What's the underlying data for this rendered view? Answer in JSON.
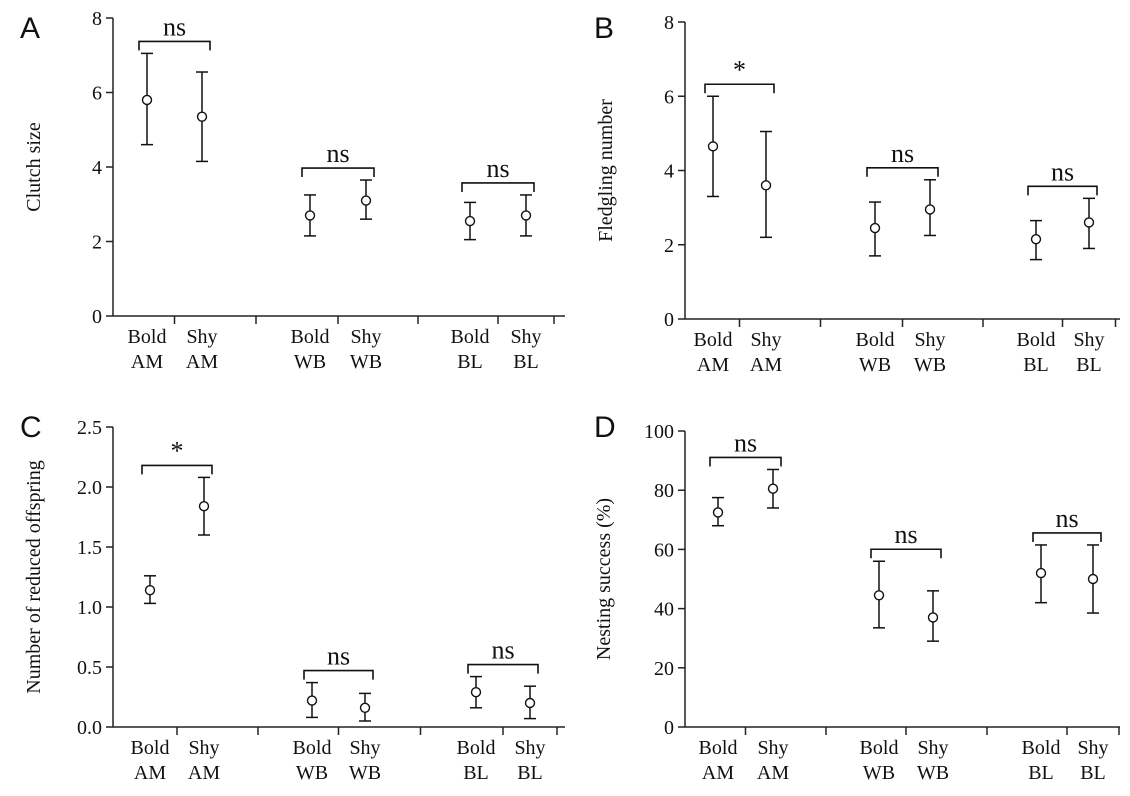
{
  "chart_data": [
    {
      "panel_label": "A",
      "type": "scatter",
      "ylabel": "Clutch size",
      "ylim": [
        0,
        8
      ],
      "yticks": [
        "0",
        "2",
        "4",
        "6",
        "8"
      ],
      "groups": [
        {
          "categories": [
            {
              "line1": "Bold",
              "line2": "AM"
            },
            {
              "line1": "Shy",
              "line2": "AM"
            }
          ],
          "means": [
            5.8,
            5.35
          ],
          "lower": [
            4.6,
            4.15
          ],
          "upper": [
            7.05,
            6.55
          ],
          "significance": "ns"
        },
        {
          "categories": [
            {
              "line1": "Bold",
              "line2": "WB"
            },
            {
              "line1": "Shy",
              "line2": "WB"
            }
          ],
          "means": [
            2.7,
            3.1
          ],
          "lower": [
            2.15,
            2.6
          ],
          "upper": [
            3.25,
            3.65
          ],
          "significance": "ns"
        },
        {
          "categories": [
            {
              "line1": "Bold",
              "line2": "BL"
            },
            {
              "line1": "Shy",
              "line2": "BL"
            }
          ],
          "means": [
            2.55,
            2.7
          ],
          "lower": [
            2.05,
            2.15
          ],
          "upper": [
            3.05,
            3.25
          ],
          "significance": "ns"
        }
      ]
    },
    {
      "panel_label": "B",
      "type": "scatter",
      "ylabel": "Fledgling number",
      "ylim": [
        0,
        8
      ],
      "yticks": [
        "0",
        "2",
        "4",
        "6",
        "8"
      ],
      "groups": [
        {
          "categories": [
            {
              "line1": "Bold",
              "line2": "AM"
            },
            {
              "line1": "Shy",
              "line2": "AM"
            }
          ],
          "means": [
            4.65,
            3.6
          ],
          "lower": [
            3.3,
            2.2
          ],
          "upper": [
            6.0,
            5.05
          ],
          "significance": "*"
        },
        {
          "categories": [
            {
              "line1": "Bold",
              "line2": "WB"
            },
            {
              "line1": "Shy",
              "line2": "WB"
            }
          ],
          "means": [
            2.45,
            2.95
          ],
          "lower": [
            1.7,
            2.25
          ],
          "upper": [
            3.15,
            3.75
          ],
          "significance": "ns"
        },
        {
          "categories": [
            {
              "line1": "Bold",
              "line2": "BL"
            },
            {
              "line1": "Shy",
              "line2": "BL"
            }
          ],
          "means": [
            2.15,
            2.6
          ],
          "lower": [
            1.6,
            1.9
          ],
          "upper": [
            2.65,
            3.25
          ],
          "significance": "ns"
        }
      ]
    },
    {
      "panel_label": "C",
      "type": "scatter",
      "ylabel": "Number of reduced offspring",
      "ylim": [
        0,
        2.5
      ],
      "yticks": [
        "0.0",
        "0.5",
        "1.0",
        "1.5",
        "2.0",
        "2.5"
      ],
      "groups": [
        {
          "categories": [
            {
              "line1": "Bold",
              "line2": "AM"
            },
            {
              "line1": "Shy",
              "line2": "AM"
            }
          ],
          "means": [
            1.14,
            1.84
          ],
          "lower": [
            1.03,
            1.6
          ],
          "upper": [
            1.26,
            2.08
          ],
          "significance": "*"
        },
        {
          "categories": [
            {
              "line1": "Bold",
              "line2": "WB"
            },
            {
              "line1": "Shy",
              "line2": "WB"
            }
          ],
          "means": [
            0.22,
            0.16
          ],
          "lower": [
            0.08,
            0.05
          ],
          "upper": [
            0.37,
            0.28
          ],
          "significance": "ns"
        },
        {
          "categories": [
            {
              "line1": "Bold",
              "line2": "BL"
            },
            {
              "line1": "Shy",
              "line2": "BL"
            }
          ],
          "means": [
            0.29,
            0.2
          ],
          "lower": [
            0.16,
            0.07
          ],
          "upper": [
            0.42,
            0.34
          ],
          "significance": "ns"
        }
      ]
    },
    {
      "panel_label": "D",
      "type": "scatter",
      "ylabel": "Nesting success (%)",
      "ylim": [
        0,
        100
      ],
      "yticks": [
        "0",
        "20",
        "40",
        "60",
        "80",
        "100"
      ],
      "groups": [
        {
          "categories": [
            {
              "line1": "Bold",
              "line2": "AM"
            },
            {
              "line1": "Shy",
              "line2": "AM"
            }
          ],
          "means": [
            72.5,
            80.5
          ],
          "lower": [
            68,
            74
          ],
          "upper": [
            77.5,
            87
          ],
          "significance": "ns"
        },
        {
          "categories": [
            {
              "line1": "Bold",
              "line2": "WB"
            },
            {
              "line1": "Shy",
              "line2": "WB"
            }
          ],
          "means": [
            44.5,
            37
          ],
          "lower": [
            33.5,
            29
          ],
          "upper": [
            56,
            46
          ],
          "significance": "ns"
        },
        {
          "categories": [
            {
              "line1": "Bold",
              "line2": "BL"
            },
            {
              "line1": "Shy",
              "line2": "BL"
            }
          ],
          "means": [
            52,
            50
          ],
          "lower": [
            42,
            38.5
          ],
          "upper": [
            61.5,
            61.5
          ],
          "significance": "ns"
        }
      ]
    }
  ]
}
